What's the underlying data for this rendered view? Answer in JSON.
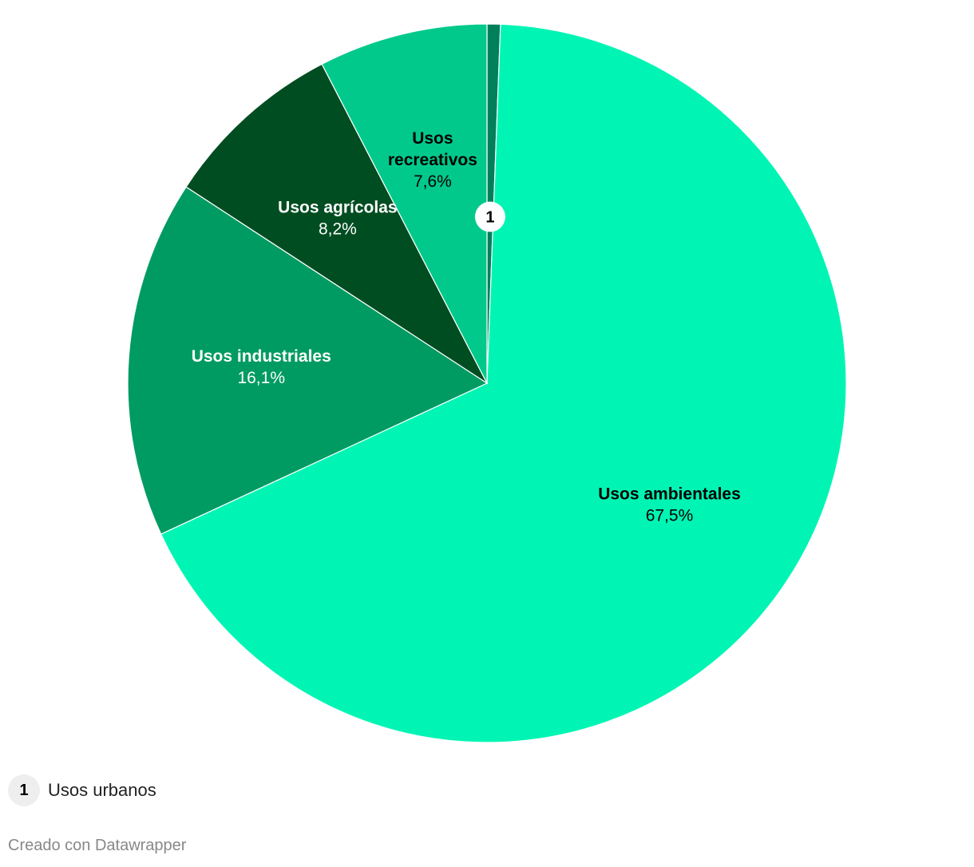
{
  "chart_data": {
    "type": "pie",
    "start_angle_deg": 0,
    "direction": "clockwise",
    "slices": [
      {
        "key": "urbanos",
        "name": "Usos urbanos",
        "value": 0.6,
        "color": "#00805a",
        "label": "",
        "value_label": "",
        "marker": "1"
      },
      {
        "key": "ambientales",
        "name": "Usos ambientales",
        "value": 67.5,
        "color": "#00f5b4",
        "label": "Usos ambientales",
        "value_label": "67,5%",
        "text_color": "#000000"
      },
      {
        "key": "industriales",
        "name": "Usos industriales",
        "value": 16.1,
        "color": "#009b62",
        "label": "Usos industriales",
        "value_label": "16,1%",
        "text_color": "#ffffff"
      },
      {
        "key": "agricolas",
        "name": "Usos agrícolas",
        "value": 8.2,
        "color": "#004d21",
        "label": "Usos agrícolas",
        "value_label": "8,2%",
        "text_color": "#ffffff"
      },
      {
        "key": "recreativos",
        "name": "Usos recreativos",
        "value": 7.6,
        "color": "#00c98b",
        "label_lines": [
          "Usos",
          "recreativos"
        ],
        "value_label": "7,6%",
        "text_color": "#000000"
      }
    ]
  },
  "legend": {
    "marker": "1",
    "text": "Usos urbanos"
  },
  "footer": {
    "credit": "Creado con Datawrapper"
  }
}
